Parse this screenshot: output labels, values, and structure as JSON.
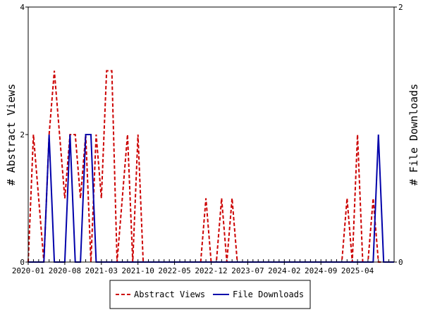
{
  "chart_data": {
    "type": "line",
    "x_start": "2020-01",
    "x": [
      "2020-01",
      "2020-02",
      "2020-03",
      "2020-04",
      "2020-05",
      "2020-06",
      "2020-07",
      "2020-08",
      "2020-09",
      "2020-10",
      "2020-11",
      "2020-12",
      "2021-01",
      "2021-02",
      "2021-03",
      "2021-04",
      "2021-05",
      "2021-06",
      "2021-07",
      "2021-08",
      "2021-09",
      "2021-10",
      "2021-11",
      "2021-12",
      "2022-01",
      "2022-02",
      "2022-03",
      "2022-04",
      "2022-05",
      "2022-06",
      "2022-07",
      "2022-08",
      "2022-09",
      "2022-10",
      "2022-11",
      "2022-12",
      "2023-01",
      "2023-02",
      "2023-03",
      "2023-04",
      "2023-05",
      "2023-06",
      "2023-07",
      "2023-08",
      "2023-09",
      "2023-10",
      "2023-11",
      "2023-12",
      "2024-01",
      "2024-02",
      "2024-03",
      "2024-04",
      "2024-05",
      "2024-06",
      "2024-07",
      "2024-08",
      "2024-09",
      "2024-10",
      "2024-11",
      "2024-12",
      "2025-01",
      "2025-02",
      "2025-03",
      "2025-04",
      "2025-05",
      "2025-06",
      "2025-07",
      "2025-08",
      "2025-09",
      "2025-10",
      "2025-11"
    ],
    "xticks": [
      "2020-01",
      "2020-08",
      "2021-03",
      "2021-10",
      "2022-05",
      "2022-12",
      "2023-07",
      "2024-02",
      "2024-09",
      "2025-04"
    ],
    "ylabel": "# Abstract Views",
    "y2label": "# File Downloads",
    "ylim": [
      0,
      4
    ],
    "y2lim": [
      0,
      2
    ],
    "yticks": [
      "0",
      "2",
      "4"
    ],
    "y2ticks": [
      "0",
      "2"
    ],
    "legend_position": "bottom",
    "series": [
      {
        "name": "Abstract Views",
        "axis": "left",
        "color": "#cc0000",
        "dash": "dashed",
        "values": [
          0,
          2,
          1,
          0,
          2,
          3,
          2,
          1,
          2,
          2,
          1,
          2,
          0,
          2,
          1,
          3,
          3,
          0,
          1,
          2,
          0,
          2,
          0,
          0,
          0,
          0,
          0,
          0,
          0,
          0,
          0,
          0,
          0,
          0,
          1,
          0,
          0,
          1,
          0,
          1,
          0,
          0,
          0,
          0,
          0,
          0,
          0,
          0,
          0,
          0,
          0,
          0,
          0,
          0,
          0,
          0,
          0,
          0,
          0,
          0,
          0,
          1,
          0,
          2,
          0,
          0,
          1,
          0,
          0,
          0,
          0
        ]
      },
      {
        "name": "File Downloads",
        "axis": "right",
        "color": "#0000aa",
        "dash": "solid",
        "values": [
          0,
          0,
          0,
          0,
          1,
          0,
          0,
          0,
          1,
          0,
          0,
          1,
          1,
          0,
          0,
          0,
          0,
          0,
          0,
          0,
          0,
          0,
          0,
          0,
          0,
          0,
          0,
          0,
          0,
          0,
          0,
          0,
          0,
          0,
          0,
          0,
          0,
          0,
          0,
          0,
          0,
          0,
          0,
          0,
          0,
          0,
          0,
          0,
          0,
          0,
          0,
          0,
          0,
          0,
          0,
          0,
          0,
          0,
          0,
          0,
          0,
          0,
          0,
          0,
          0,
          0,
          0,
          1,
          0,
          0,
          0
        ]
      }
    ]
  }
}
